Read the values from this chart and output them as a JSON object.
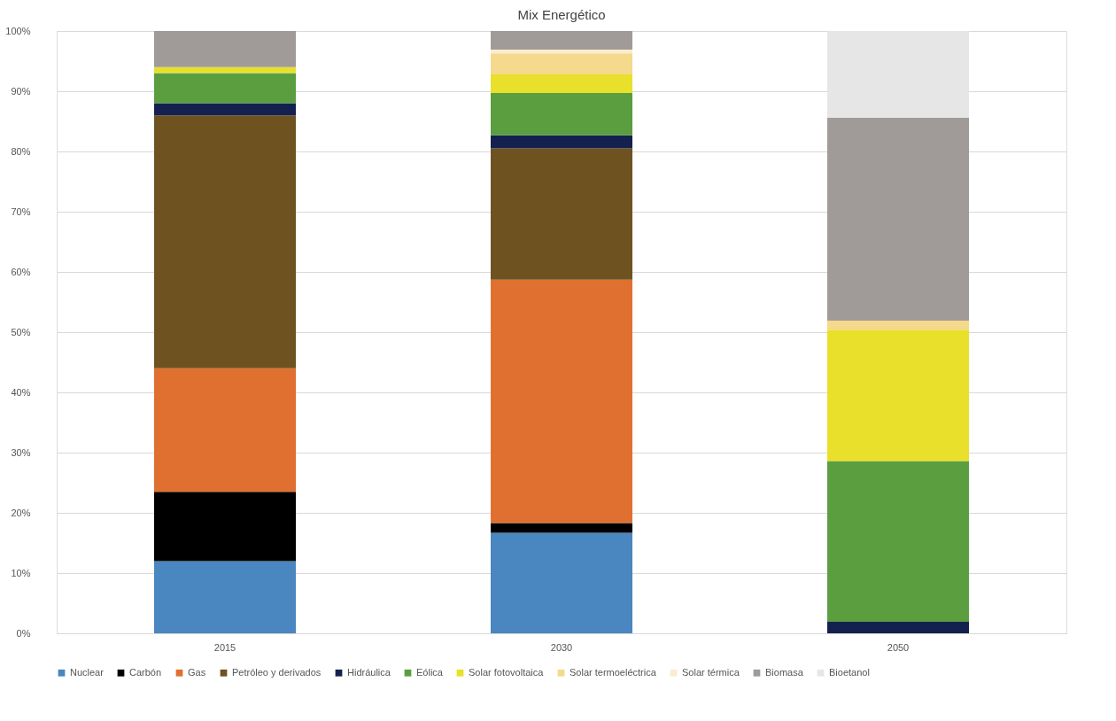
{
  "chart_data": {
    "type": "bar",
    "title": "Mix Energético",
    "stacked": true,
    "categories": [
      "2015",
      "2030",
      "2050"
    ],
    "series": [
      {
        "name": "Nuclear",
        "color": "#4a86c0",
        "values": [
          12,
          16.7,
          null
        ]
      },
      {
        "name": "Carbón",
        "color": "#000000",
        "values": [
          11.5,
          1.6,
          null
        ]
      },
      {
        "name": "Gas",
        "color": "#e07030",
        "values": [
          20.5,
          40.4,
          null
        ]
      },
      {
        "name": "Petróleo y derivados",
        "color": "#6e5220",
        "values": [
          42,
          21.8,
          null
        ]
      },
      {
        "name": "Hidráulica",
        "color": "#14214f",
        "values": [
          2,
          2.2,
          1.9
        ]
      },
      {
        "name": "Eólica",
        "color": "#5b9e40",
        "values": [
          5,
          7,
          26.7
        ]
      },
      {
        "name": "Solar fotovoltaica",
        "color": "#e8e02a",
        "values": [
          1,
          3.1,
          21.8
        ]
      },
      {
        "name": "Solar termoeléctrica",
        "color": "#f5d98c",
        "values": [
          null,
          3.5,
          1.5
        ]
      },
      {
        "name": "Solar térmica",
        "color": "#fbeccf",
        "values": [
          null,
          0.6,
          null
        ]
      },
      {
        "name": "Biomasa",
        "color": "#a09b98",
        "values": [
          6,
          3.1,
          33.7
        ]
      },
      {
        "name": "Bioetanol",
        "color": "#e6e6e6",
        "values": [
          null,
          null,
          14.4
        ]
      }
    ],
    "ylim": [
      0,
      100
    ],
    "yticks": [
      {
        "value": 0,
        "label": "0%"
      },
      {
        "value": 10,
        "label": "10%"
      },
      {
        "value": 20,
        "label": "20%"
      },
      {
        "value": 30,
        "label": "30%"
      },
      {
        "value": 40,
        "label": "40%"
      },
      {
        "value": 50,
        "label": "50%"
      },
      {
        "value": 60,
        "label": "60%"
      },
      {
        "value": 70,
        "label": "70%"
      },
      {
        "value": 80,
        "label": "80%"
      },
      {
        "value": 90,
        "label": "90%"
      },
      {
        "value": 100,
        "label": "100%"
      }
    ],
    "grid": "y",
    "legend": "bottom"
  }
}
